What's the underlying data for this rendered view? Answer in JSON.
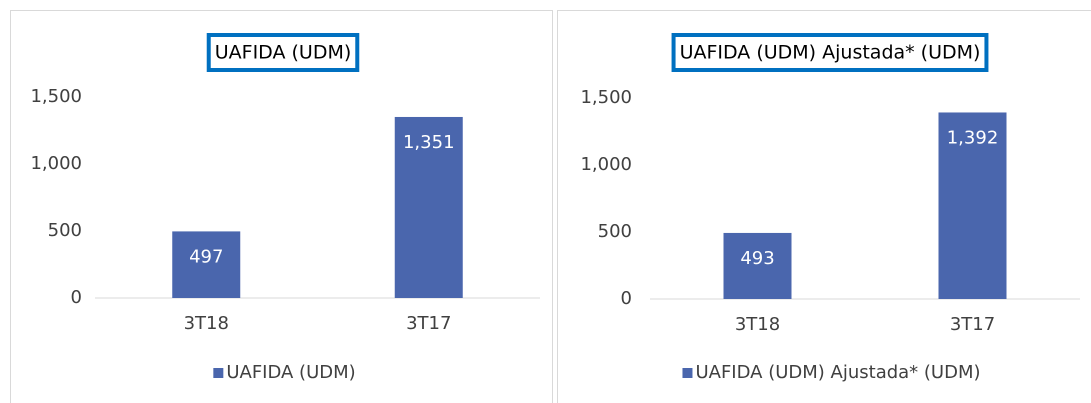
{
  "chart_data": [
    {
      "type": "bar",
      "title": "UAFIDA (UDM)",
      "categories": [
        "3T18",
        "3T17"
      ],
      "series": [
        {
          "name": "UAFIDA (UDM)",
          "color": "#4a66ad",
          "values": [
            497,
            1351
          ],
          "value_labels": [
            "497",
            "1,351"
          ]
        }
      ],
      "ylim": [
        0,
        1500
      ],
      "yticks": [
        0,
        500,
        {
          "value": 1000,
          "label": "1,000"
        },
        {
          "value": 1500,
          "label": "1,500"
        }
      ],
      "grid": false,
      "legend": "bottom"
    },
    {
      "type": "bar",
      "title": "UAFIDA (UDM) Ajustada* (UDM)",
      "categories": [
        "3T18",
        "3T17"
      ],
      "series": [
        {
          "name": "UAFIDA (UDM) Ajustada* (UDM)",
          "color": "#4a66ad",
          "values": [
            493,
            1392
          ],
          "value_labels": [
            "493",
            "1,392"
          ]
        }
      ],
      "ylim": [
        0,
        1500
      ],
      "yticks": [
        0,
        500,
        {
          "value": 1000,
          "label": "1,000"
        },
        {
          "value": 1500,
          "label": "1,500"
        }
      ],
      "grid": false,
      "legend": "bottom"
    }
  ]
}
